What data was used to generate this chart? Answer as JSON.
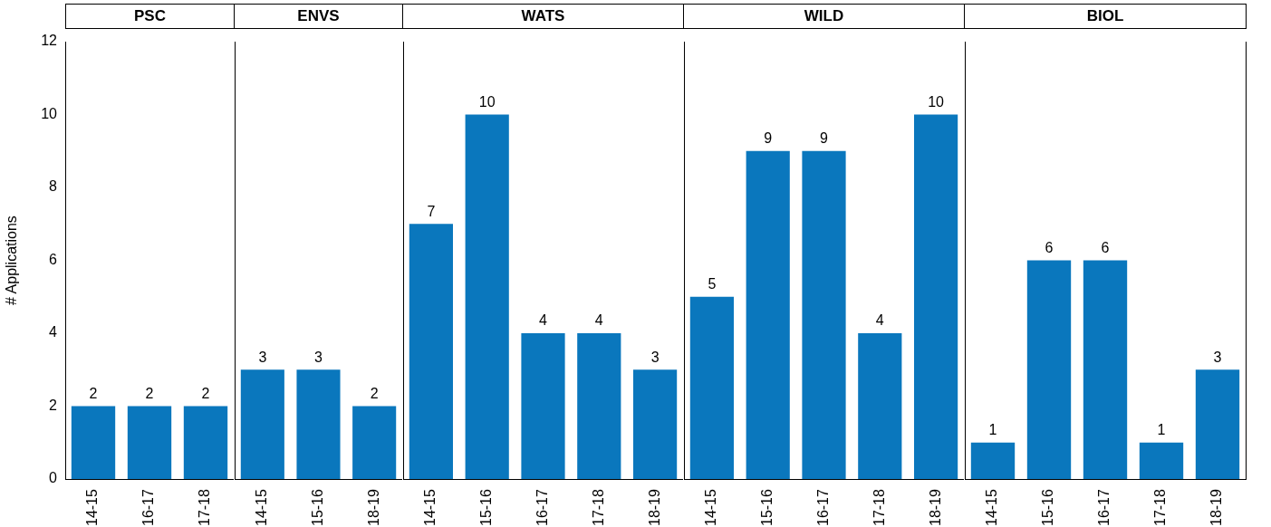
{
  "chart_data": [
    {
      "type": "bar",
      "title": "PSC",
      "ylabel": "# Applications",
      "categories": [
        "14-15",
        "16-17",
        "17-18"
      ],
      "values": [
        2,
        2,
        2
      ],
      "color": "#0a77bd",
      "ylim": [
        0,
        12
      ],
      "yticks": [
        0,
        2,
        4,
        6,
        8,
        10,
        12
      ],
      "data_labels": true
    },
    {
      "type": "bar",
      "title": "ENVS",
      "categories": [
        "14-15",
        "15-16",
        "18-19"
      ],
      "values": [
        3,
        3,
        2
      ],
      "color": "#0a77bd",
      "ylim": [
        0,
        12
      ],
      "yticks": [
        0,
        2,
        4,
        6,
        8,
        10,
        12
      ],
      "data_labels": true,
      "tick_labels": "x"
    },
    {
      "type": "bar",
      "title": "WATS",
      "categories": [
        "14-15",
        "15-16",
        "16-17",
        "17-18",
        "18-19"
      ],
      "values": [
        7,
        10,
        4,
        4,
        3
      ],
      "color": "#0a77bd",
      "ylim": [
        0,
        12
      ],
      "yticks": [
        0,
        2,
        4,
        6,
        8,
        10,
        12
      ],
      "data_labels": true,
      "tick_labels": "x"
    },
    {
      "type": "bar",
      "title": "WILD",
      "categories": [
        "14-15",
        "15-16",
        "16-17",
        "17-18",
        "18-19"
      ],
      "values": [
        5,
        9,
        9,
        4,
        10
      ],
      "color": "#0a77bd",
      "ylim": [
        0,
        12
      ],
      "yticks": [
        0,
        2,
        4,
        6,
        8,
        10,
        12
      ],
      "data_labels": true,
      "tick_labels": "x"
    },
    {
      "type": "bar",
      "title": "BIOL",
      "categories": [
        "14-15",
        "15-16",
        "16-17",
        "17-18",
        "18-19"
      ],
      "values": [
        1,
        6,
        6,
        1,
        3
      ],
      "color": "#0a77bd",
      "ylim": [
        0,
        12
      ],
      "yticks": [
        0,
        2,
        4,
        6,
        8,
        10,
        12
      ],
      "data_labels": true,
      "tick_labels": "x"
    }
  ]
}
